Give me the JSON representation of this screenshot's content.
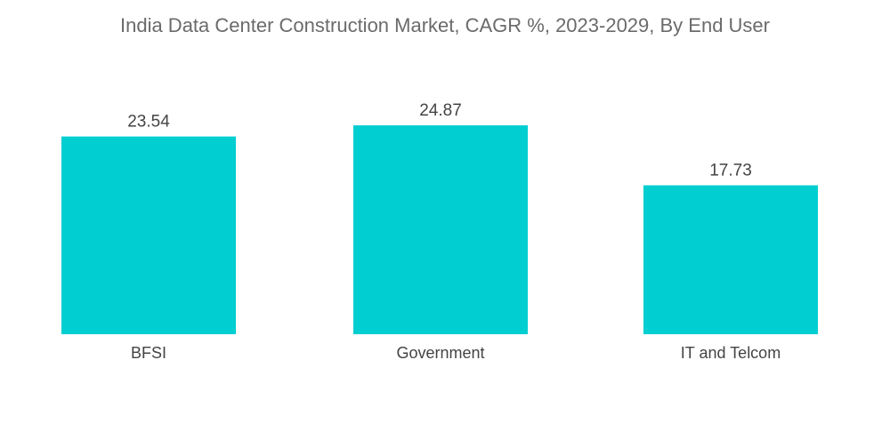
{
  "chart_data": {
    "type": "bar",
    "title": "India Data Center Construction Market, CAGR %, 2023-2029, By End User",
    "categories": [
      "BFSI",
      "Government",
      "IT and Telcom"
    ],
    "values": [
      23.54,
      24.87,
      17.73
    ],
    "data_labels": [
      "23.54",
      "24.87",
      "17.73"
    ],
    "xlabel": "",
    "ylabel": "",
    "ylim": [
      0,
      24.87
    ],
    "grid": false,
    "bar_color": "#00CED1"
  }
}
